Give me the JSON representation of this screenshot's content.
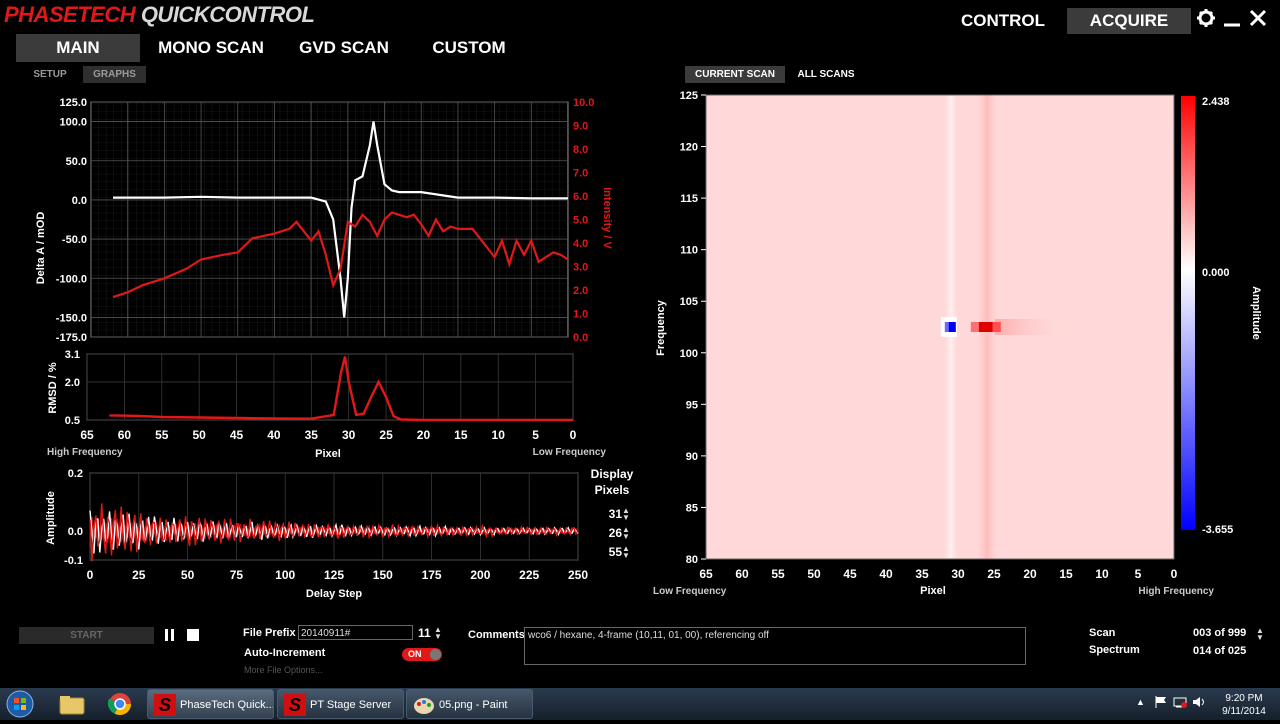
{
  "app": {
    "title_part1": "PHASETECH",
    "title_part2": "QUICKCONTROL"
  },
  "topnav": {
    "control": "CONTROL",
    "acquire": "ACQUIRE"
  },
  "icons": {
    "settings": "gear-icon",
    "minimize": "minimize-icon",
    "close": "close-icon"
  },
  "mainnav": [
    "MAIN",
    "MONO SCAN",
    "GVD SCAN",
    "CUSTOM"
  ],
  "subtabs": {
    "setup": "SETUP",
    "graphs": "GRAPHS"
  },
  "plot_tabs": {
    "current": "CURRENT SCAN",
    "all": "ALL SCANS"
  },
  "colors": {
    "accent_red": "#e01818",
    "signal_white": "#ffffff",
    "heatmap_pos": "#ff0000",
    "heatmap_neg": "#0000ff"
  },
  "chart_data": [
    {
      "type": "line",
      "xlim": [
        65,
        0
      ],
      "ylabel": "Delta A / mOD",
      "y2label": "Intensity / V",
      "yticks": [
        "125.0",
        "100.0",
        "50.0",
        "0.0",
        "-50.0",
        "-100.0",
        "-150.0",
        "-175.0"
      ],
      "y2ticks": [
        "10.0",
        "9.0",
        "8.0",
        "7.0",
        "6.0",
        "5.0",
        "4.0",
        "3.0",
        "2.0",
        "1.0",
        "0.0"
      ],
      "ylim": [
        -175,
        125
      ],
      "y2lim": [
        0,
        10
      ],
      "series": [
        {
          "axis": "left",
          "color": "#ffffff",
          "x": [
            62,
            58,
            55,
            50,
            45,
            40,
            35,
            33,
            32,
            31,
            30.5,
            30,
            29.5,
            29,
            28,
            27,
            26.5,
            26,
            25,
            24,
            23,
            20,
            15,
            10,
            5,
            0
          ],
          "y": [
            3,
            3,
            3,
            4,
            3,
            3,
            3,
            -2,
            -25,
            -100,
            -150,
            -100,
            -10,
            25,
            30,
            70,
            100,
            70,
            20,
            12,
            10,
            10,
            3,
            3,
            2,
            2
          ]
        },
        {
          "axis": "right",
          "color": "#e01818",
          "x": [
            62,
            60,
            58,
            55,
            52,
            50,
            47,
            45,
            43,
            40,
            38,
            37,
            35,
            34,
            33,
            32,
            31,
            30,
            29,
            28,
            27,
            26,
            25,
            24,
            22,
            21,
            20,
            19,
            18,
            17,
            16,
            15,
            13,
            10,
            9,
            8,
            7,
            6,
            5,
            4,
            3,
            2,
            1,
            0
          ],
          "y": [
            1.7,
            1.9,
            2.2,
            2.5,
            2.9,
            3.3,
            3.5,
            3.6,
            4.2,
            4.4,
            4.6,
            4.9,
            4.1,
            4.5,
            3.5,
            2.2,
            2.9,
            4.9,
            4.7,
            5.2,
            4.9,
            4.3,
            5.0,
            5.3,
            5.1,
            5.2,
            4.8,
            4.3,
            5.0,
            4.5,
            4.7,
            4.6,
            4.6,
            3.4,
            4.1,
            3.1,
            4.1,
            3.5,
            4.1,
            3.2,
            3.4,
            3.6,
            3.5,
            3.3
          ]
        }
      ]
    },
    {
      "type": "line",
      "ylabel": "RMSD / %",
      "xlabel": "Pixel",
      "xlabel_left": "High Frequency",
      "xlabel_right": "Low Frequency",
      "xticks": [
        65,
        60,
        55,
        50,
        45,
        40,
        35,
        30,
        25,
        20,
        15,
        10,
        5,
        0
      ],
      "xlim": [
        65,
        0
      ],
      "yticks": [
        "3.1",
        "2.0",
        "0.5"
      ],
      "ylim": [
        0.5,
        3.1
      ],
      "series": [
        {
          "color": "#e01818",
          "x": [
            62,
            58,
            55,
            50,
            45,
            40,
            35,
            32,
            31,
            30.5,
            30,
            29,
            28,
            27,
            26,
            25,
            24,
            23,
            20,
            15,
            10,
            5,
            0
          ],
          "y": [
            0.68,
            0.66,
            0.62,
            0.6,
            0.58,
            0.56,
            0.55,
            0.7,
            2.4,
            3.0,
            2.0,
            0.7,
            0.75,
            1.4,
            2.0,
            1.4,
            0.65,
            0.52,
            0.5,
            0.5,
            0.5,
            0.5,
            0.5
          ]
        }
      ]
    },
    {
      "type": "line",
      "ylabel": "Amplitude",
      "xlabel": "Delay Step",
      "xticks": [
        0,
        25,
        50,
        75,
        100,
        125,
        150,
        175,
        200,
        225,
        250
      ],
      "xlim": [
        0,
        250
      ],
      "yticks": [
        "0.2",
        "0.0",
        "-0.1"
      ],
      "ylim": [
        -0.1,
        0.2
      ],
      "series": [
        {
          "name": "31",
          "color": "#e01818",
          "envelope": 0.09,
          "decay_to": 0.012
        },
        {
          "name": "26",
          "color": "#ffffff",
          "envelope": 0.07,
          "decay_to": 0.01
        },
        {
          "name": "55",
          "color": "#b01010",
          "envelope": 0.05,
          "decay_to": 0.008
        }
      ]
    },
    {
      "type": "heatmap",
      "xlabel": "Pixel",
      "ylabel": "Frequency",
      "xlabel_left": "Low Frequency",
      "xlabel_right": "High Frequency",
      "xticks": [
        65,
        60,
        55,
        50,
        45,
        40,
        35,
        30,
        25,
        20,
        15,
        10,
        5,
        0
      ],
      "xlim": [
        65,
        0
      ],
      "yticks": [
        125,
        120,
        115,
        110,
        105,
        100,
        95,
        90,
        85,
        80
      ],
      "ylim": [
        80,
        125
      ],
      "colorbar": {
        "label": "Amplitude",
        "max": "2.438",
        "mid": "0.000",
        "min": "-3.655"
      },
      "features": [
        {
          "x": 31,
          "y": 102.5,
          "value": -3.655
        },
        {
          "x": 26,
          "y": 102.5,
          "value": 2.438
        }
      ]
    }
  ],
  "display_pixels": {
    "label_line1": "Display",
    "label_line2": "Pixels",
    "values": [
      "31",
      "26",
      "55"
    ]
  },
  "controls": {
    "start": "START",
    "file_prefix_label": "File Prefix",
    "file_prefix_value": "20140911#",
    "file_index": "11",
    "auto_increment_label": "Auto-Increment",
    "auto_increment_state": "ON",
    "more_file_options": "More File Options...",
    "comments_label": "Comments",
    "comments_value": "wco6 / hexane, 4-frame (10,11, 01, 00), referencing off",
    "scan_label": "Scan",
    "scan_value": "003 of 999",
    "spectrum_label": "Spectrum",
    "spectrum_value": "014 of 025"
  },
  "taskbar": {
    "items": [
      "PhaseTech Quick...",
      "PT Stage Server",
      "05.png - Paint"
    ],
    "time": "9:20 PM",
    "date": "9/11/2014"
  }
}
